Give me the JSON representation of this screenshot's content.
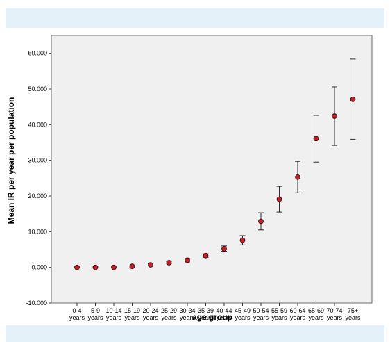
{
  "chart_data": {
    "type": "scatter",
    "title": "",
    "xlabel": "age group",
    "ylabel": "Mean IR per year per population",
    "ylim": [
      -10000,
      65000
    ],
    "yticks": [
      -10000,
      0,
      10000,
      20000,
      30000,
      40000,
      50000,
      60000
    ],
    "ytick_labels": [
      "-10.000",
      "0.000",
      "10.000",
      "20.000",
      "30.000",
      "40.000",
      "50.000",
      "60.000"
    ],
    "categories": [
      [
        "0-4",
        "years"
      ],
      [
        "5-9",
        "years"
      ],
      [
        "10-14",
        "years"
      ],
      [
        "15-19",
        "years"
      ],
      [
        "20-24",
        "years"
      ],
      [
        "25-29",
        "years"
      ],
      [
        "30-34",
        "years"
      ],
      [
        "35-39",
        "years"
      ],
      [
        "40-44",
        "years"
      ],
      [
        "45-49",
        "years"
      ],
      [
        "50-54",
        "years"
      ],
      [
        "55-59",
        "years"
      ],
      [
        "60-64",
        "years"
      ],
      [
        "65-69",
        "years"
      ],
      [
        "70-74",
        "years"
      ],
      [
        "75+",
        "years"
      ]
    ],
    "series": [
      {
        "values": [
          0,
          0,
          0,
          300,
          700,
          1300,
          2000,
          3300,
          5200,
          7600,
          12900,
          19100,
          25300,
          36100,
          42400,
          47100
        ],
        "lower": [
          -150,
          -150,
          -150,
          100,
          400,
          1000,
          1500,
          2800,
          4500,
          6300,
          10500,
          15500,
          20900,
          29500,
          34200,
          35900
        ],
        "upper": [
          150,
          150,
          150,
          500,
          1000,
          1600,
          2500,
          3800,
          6000,
          8900,
          15300,
          22700,
          29700,
          42600,
          50600,
          58400
        ]
      }
    ],
    "grid": false,
    "legend": "none",
    "colors": {
      "marker_fill": "#c8202a",
      "marker_edge": "#3a0a0a",
      "errorbar": "#2b2b2b",
      "plot_bg": "#f0f0f0",
      "band": "#e5f1f8"
    }
  }
}
